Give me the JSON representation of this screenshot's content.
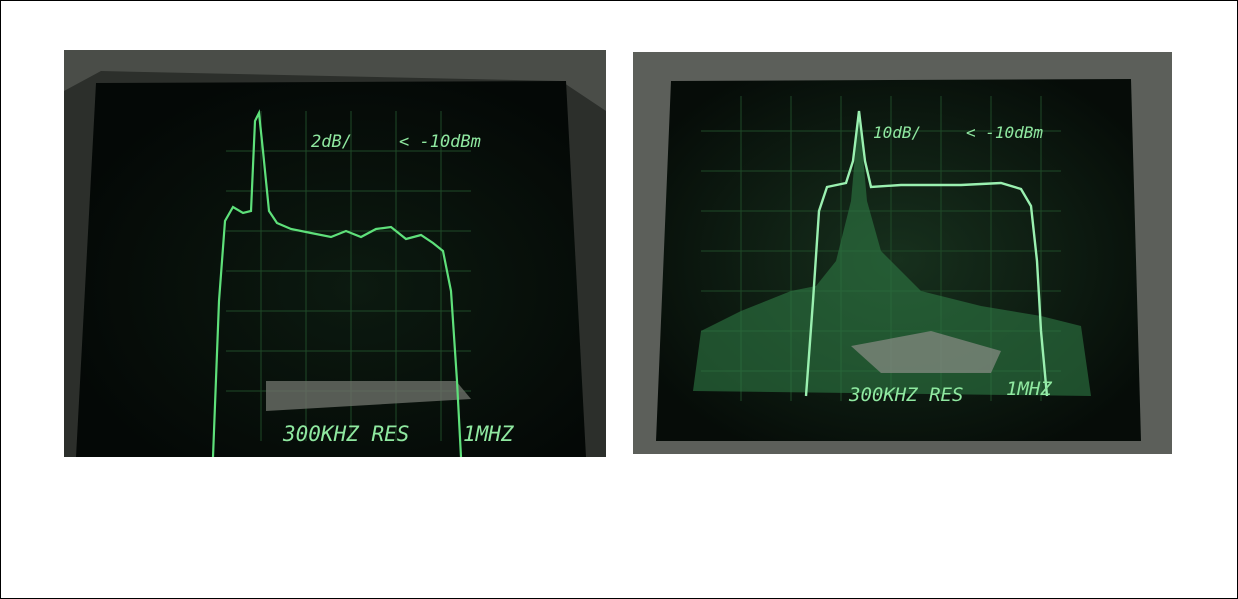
{
  "panels": [
    {
      "scale_label": "2dB/",
      "reference_label": "< -10dBm",
      "resolution_label": "300KHZ RES",
      "span_label": "1MHZ"
    },
    {
      "scale_label": "10dB/",
      "reference_label": "< -10dBm",
      "resolution_label": "300KHZ RES",
      "span_label": "1MHZ"
    }
  ]
}
